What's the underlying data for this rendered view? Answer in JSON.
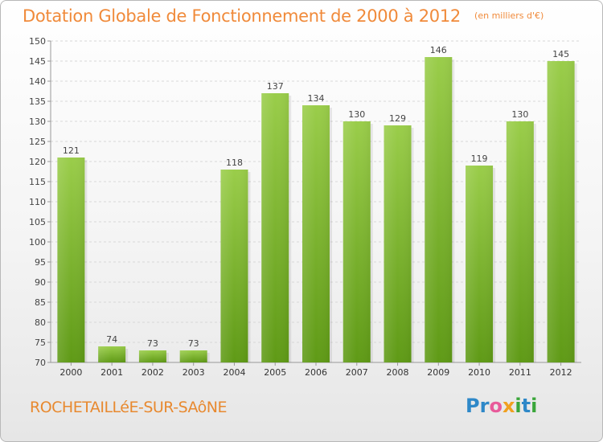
{
  "chart_data": {
    "type": "bar",
    "title": "Dotation Globale de Fonctionnement de 2000 à 2012",
    "subtitle": "(en milliers d'€)",
    "categories": [
      "2000",
      "2001",
      "2002",
      "2003",
      "2004",
      "2005",
      "2006",
      "2007",
      "2008",
      "2009",
      "2010",
      "2011",
      "2012"
    ],
    "values": [
      121,
      74,
      73,
      73,
      118,
      137,
      134,
      130,
      129,
      146,
      119,
      130,
      145
    ],
    "ylim": [
      70,
      150
    ],
    "yticks": [
      70,
      75,
      80,
      85,
      90,
      95,
      100,
      105,
      110,
      115,
      120,
      125,
      130,
      135,
      140,
      145,
      150
    ],
    "grid": true,
    "bar_color": "#7ab733"
  },
  "footer": {
    "place": "ROCHETAILLéE-SUR-SAôNE",
    "logo_letters": [
      {
        "ch": "P",
        "color": "#2e88c8"
      },
      {
        "ch": "r",
        "color": "#2e88c8"
      },
      {
        "ch": "o",
        "color": "#e85a9a"
      },
      {
        "ch": "x",
        "color": "#f0a020"
      },
      {
        "ch": "i",
        "color": "#3aa63a"
      },
      {
        "ch": "t",
        "color": "#2e88c8"
      },
      {
        "ch": "i",
        "color": "#3aa63a"
      }
    ]
  }
}
